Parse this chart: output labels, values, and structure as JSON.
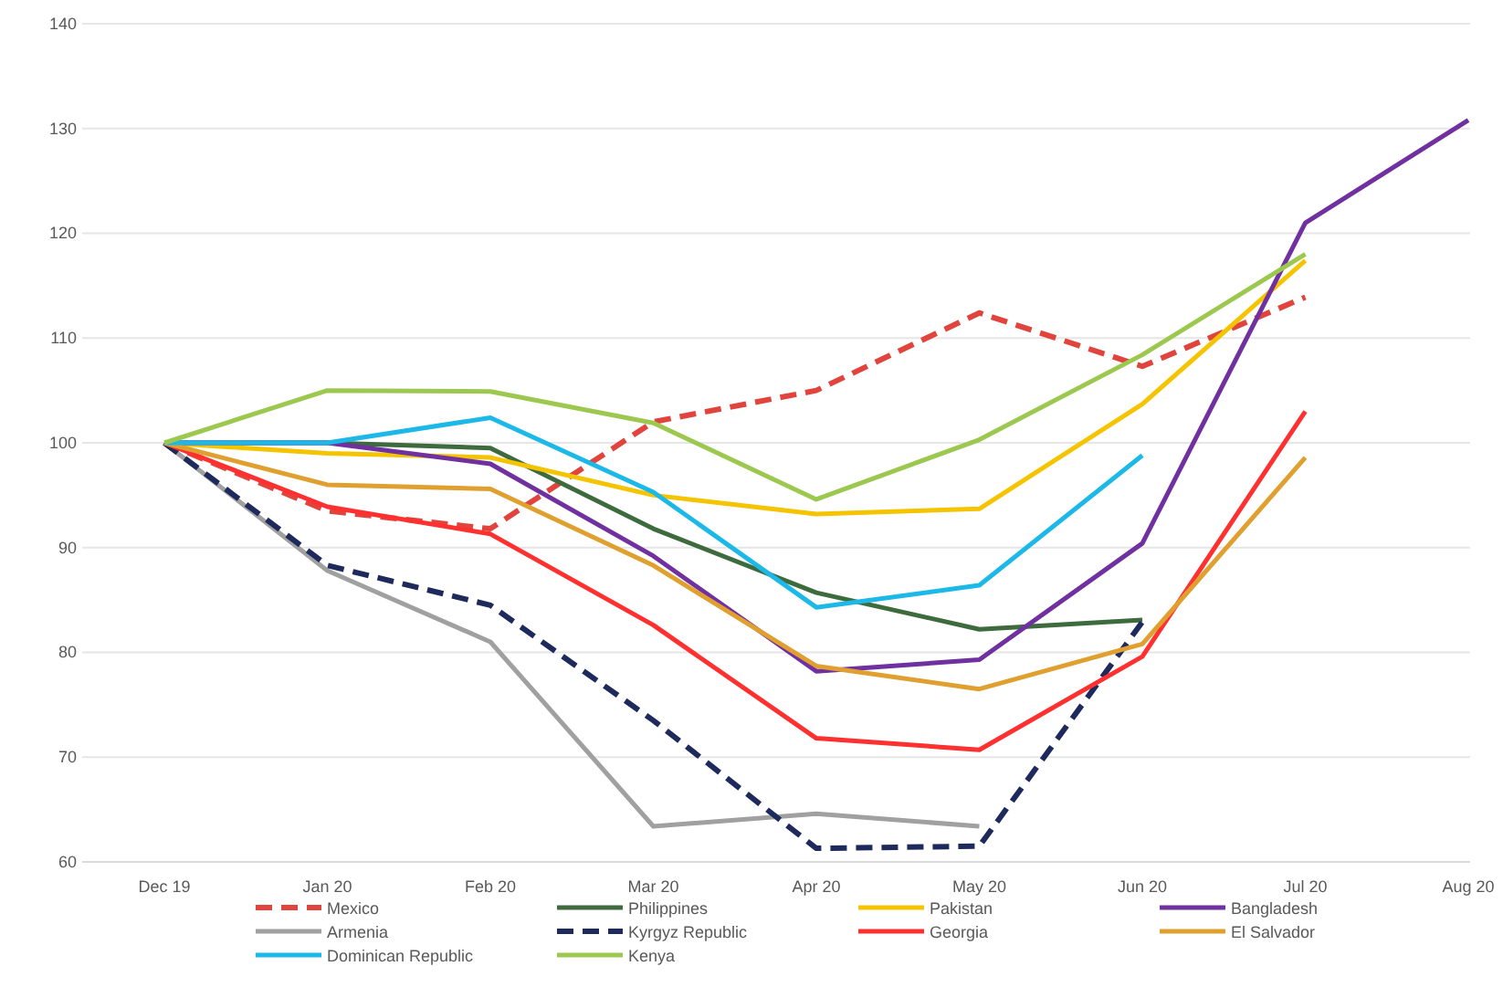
{
  "chart_data": {
    "type": "line",
    "categories": [
      "Dec 19",
      "Jan 20",
      "Feb 20",
      "Mar 20",
      "Apr 20",
      "May 20",
      "Jun 20",
      "Jul 20",
      "Aug 20"
    ],
    "ylim": [
      60,
      140
    ],
    "yticks": [
      60,
      70,
      80,
      90,
      100,
      110,
      120,
      130,
      140
    ],
    "grid": "y",
    "legend": "bottom",
    "series": [
      {
        "name": "Mexico",
        "color": "#e0443c",
        "line_style": "dashed",
        "values": [
          100,
          93.5,
          91.8,
          102,
          105,
          112.4,
          107.3,
          113.9,
          null
        ]
      },
      {
        "name": "Philippines",
        "color": "#3e6b3e",
        "values": [
          100,
          100,
          99.5,
          91.8,
          85.7,
          82.2,
          83.1,
          null,
          null
        ]
      },
      {
        "name": "Pakistan",
        "color": "#f5c400",
        "values": [
          100,
          99,
          98.6,
          95,
          93.2,
          93.7,
          103.7,
          117.4,
          null
        ]
      },
      {
        "name": "Bangladesh",
        "color": "#7030a0",
        "values": [
          100,
          100,
          98,
          89.2,
          78.2,
          79.3,
          90.4,
          121,
          130.8
        ]
      },
      {
        "name": "Armenia",
        "color": "#a0a0a0",
        "values": [
          100,
          87.8,
          81,
          63.4,
          64.6,
          63.4,
          null,
          null,
          null
        ]
      },
      {
        "name": "Kyrgyz Republic",
        "color": "#1f2a5c",
        "line_style": "dashed",
        "values": [
          100,
          88.3,
          84.5,
          73.5,
          61.3,
          61.5,
          82.9,
          null,
          null
        ]
      },
      {
        "name": "Georgia",
        "color": "#ff3030",
        "values": [
          100,
          93.9,
          91.3,
          82.6,
          71.8,
          70.7,
          79.6,
          103,
          null
        ]
      },
      {
        "name": "El Salvador",
        "color": "#e0a030",
        "values": [
          100,
          96,
          95.6,
          88.3,
          78.7,
          76.5,
          80.8,
          98.6,
          null
        ]
      },
      {
        "name": "Dominican Republic",
        "color": "#1cb8e8",
        "values": [
          100,
          100,
          102.4,
          95.3,
          84.3,
          86.4,
          98.8,
          null,
          null
        ]
      },
      {
        "name": "Kenya",
        "color": "#9cc850",
        "values": [
          100,
          105,
          104.9,
          101.9,
          94.6,
          100.3,
          108.4,
          118,
          null
        ]
      }
    ]
  }
}
